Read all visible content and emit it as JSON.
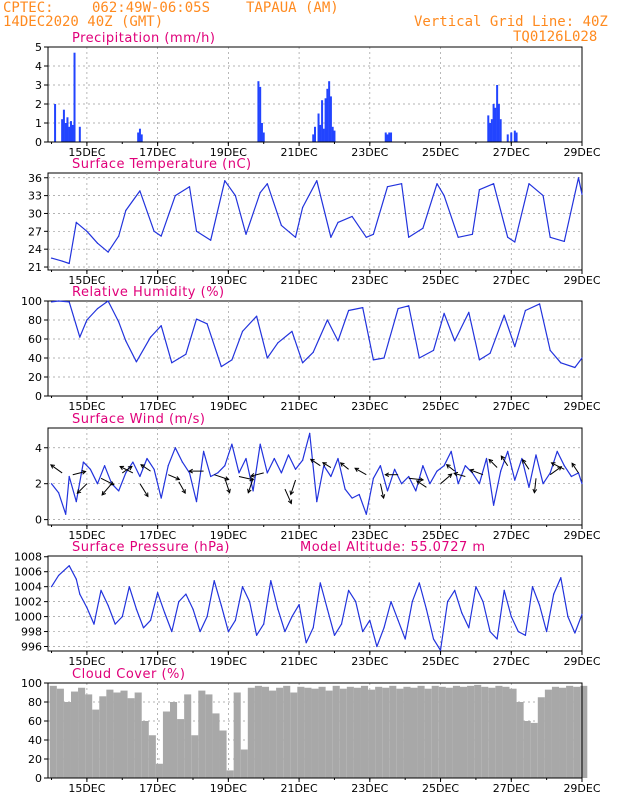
{
  "header": {
    "source": "CPTEC:",
    "coords": "062:49W-06:05S",
    "location": "TAPAUA (AM)",
    "date": "14DEC2020 40Z (GMT)",
    "grid_note": "Vertical Grid Line: 40Z",
    "model_id": "TQ0126L028"
  },
  "colors": {
    "header": "#ff8a1f",
    "title": "#e0007a",
    "line": "#2233dd",
    "bar": "#2244ff",
    "cloud": "#a8a8a8",
    "grid": "#9a9a9a"
  },
  "x_axis": {
    "day_ticks": [
      "15DEC",
      "17DEC",
      "19DEC",
      "21DEC",
      "23DEC",
      "25DEC",
      "27DEC",
      "29DEC"
    ],
    "tick_days": [
      15,
      17,
      19,
      21,
      23,
      25,
      27,
      29
    ],
    "xlim": [
      13.9,
      29.0
    ]
  },
  "chart_data": [
    {
      "id": "precip",
      "type": "bar",
      "title": "Precipitation (mm/h)",
      "ylim": [
        0,
        5
      ],
      "yticks": [
        "0",
        "1",
        "2",
        "3",
        "4",
        "5"
      ],
      "x": [
        14.1,
        14.3,
        14.35,
        14.4,
        14.45,
        14.5,
        14.55,
        14.6,
        14.65,
        14.8,
        16.45,
        16.5,
        16.55,
        19.85,
        19.9,
        19.95,
        20.0,
        21.4,
        21.45,
        21.55,
        21.6,
        21.65,
        21.7,
        21.75,
        21.8,
        21.85,
        21.9,
        21.95,
        22.0,
        23.45,
        23.5,
        23.55,
        23.6,
        26.35,
        26.4,
        26.45,
        26.5,
        26.55,
        26.6,
        26.65,
        26.7,
        26.9,
        27.0,
        27.1,
        27.15
      ],
      "values": [
        2.0,
        1.2,
        1.7,
        1.0,
        1.3,
        0.8,
        1.1,
        0.9,
        4.7,
        0.8,
        0.5,
        0.7,
        0.4,
        3.2,
        2.9,
        1.0,
        0.5,
        0.4,
        0.8,
        1.5,
        0.9,
        2.2,
        0.7,
        2.3,
        2.8,
        3.2,
        2.4,
        0.8,
        0.6,
        0.5,
        0.4,
        0.5,
        0.5,
        1.4,
        1.0,
        1.2,
        2.0,
        1.8,
        3.0,
        2.0,
        1.2,
        0.4,
        0.5,
        0.6,
        0.5
      ]
    },
    {
      "id": "temp",
      "type": "line",
      "title": "Surface Temperature (nC)",
      "ylim": [
        20.5,
        36.8
      ],
      "yticks": [
        "21",
        "24",
        "27",
        "30",
        "33",
        "36"
      ],
      "x": [
        14.0,
        14.3,
        14.5,
        14.7,
        15.0,
        15.3,
        15.6,
        15.9,
        16.1,
        16.5,
        16.9,
        17.1,
        17.5,
        17.9,
        18.1,
        18.5,
        18.9,
        19.2,
        19.5,
        19.9,
        20.1,
        20.5,
        20.9,
        21.1,
        21.5,
        21.9,
        22.1,
        22.5,
        22.9,
        23.1,
        23.5,
        23.9,
        24.1,
        24.5,
        24.9,
        25.1,
        25.5,
        25.9,
        26.1,
        26.5,
        26.9,
        27.1,
        27.5,
        27.9,
        28.1,
        28.5,
        28.9,
        29.0
      ],
      "values": [
        22.5,
        22.0,
        21.6,
        28.5,
        27.0,
        25.0,
        23.5,
        26.2,
        30.5,
        33.8,
        27.0,
        26.2,
        33.0,
        34.5,
        27.0,
        25.5,
        35.5,
        33.0,
        26.5,
        33.5,
        35.0,
        28.0,
        26.0,
        31.0,
        35.5,
        26.0,
        28.5,
        29.5,
        26.0,
        26.5,
        34.5,
        35.0,
        26.0,
        27.5,
        35.0,
        33.0,
        26.0,
        26.5,
        34.0,
        35.0,
        26.0,
        25.2,
        35.0,
        33.0,
        26.0,
        25.3,
        36.0,
        33.2
      ]
    },
    {
      "id": "rh",
      "type": "line",
      "title": "Relative Humidity (%)",
      "ylim": [
        0,
        100
      ],
      "yticks": [
        "0",
        "20",
        "40",
        "60",
        "80",
        "100"
      ],
      "x": [
        14.0,
        14.2,
        14.5,
        14.8,
        15.0,
        15.3,
        15.6,
        15.9,
        16.1,
        16.4,
        16.8,
        17.1,
        17.4,
        17.8,
        18.1,
        18.4,
        18.8,
        19.1,
        19.4,
        19.8,
        20.1,
        20.4,
        20.8,
        21.1,
        21.4,
        21.8,
        22.1,
        22.4,
        22.8,
        23.1,
        23.4,
        23.8,
        24.1,
        24.4,
        24.8,
        25.1,
        25.4,
        25.8,
        26.1,
        26.4,
        26.8,
        27.1,
        27.4,
        27.8,
        28.1,
        28.4,
        28.8,
        29.0
      ],
      "values": [
        99,
        100,
        99,
        62,
        80,
        92,
        100,
        78,
        58,
        36,
        62,
        74,
        35,
        44,
        81,
        76,
        31,
        38,
        68,
        84,
        40,
        56,
        68,
        35,
        46,
        80,
        58,
        90,
        93,
        38,
        40,
        92,
        95,
        40,
        48,
        87,
        58,
        88,
        38,
        45,
        85,
        52,
        90,
        97,
        48,
        35,
        30,
        40
      ]
    },
    {
      "id": "wind",
      "type": "line",
      "title": "Surface Wind (m/s)",
      "ylim": [
        -0.3,
        5.1
      ],
      "yticks": [
        "0",
        "2",
        "4"
      ],
      "x": [
        14.0,
        14.2,
        14.4,
        14.5,
        14.7,
        14.9,
        15.1,
        15.3,
        15.5,
        15.7,
        15.9,
        16.1,
        16.3,
        16.5,
        16.7,
        16.9,
        17.1,
        17.3,
        17.5,
        17.7,
        17.9,
        18.1,
        18.3,
        18.5,
        18.7,
        18.9,
        19.1,
        19.3,
        19.5,
        19.7,
        19.9,
        20.1,
        20.3,
        20.5,
        20.7,
        20.9,
        21.1,
        21.3,
        21.5,
        21.7,
        21.9,
        22.1,
        22.3,
        22.5,
        22.7,
        22.9,
        23.1,
        23.3,
        23.5,
        23.7,
        23.9,
        24.1,
        24.3,
        24.5,
        24.7,
        24.9,
        25.1,
        25.3,
        25.5,
        25.7,
        25.9,
        26.1,
        26.3,
        26.5,
        26.7,
        26.9,
        27.1,
        27.3,
        27.5,
        27.7,
        27.9,
        28.1,
        28.3,
        28.5,
        28.7,
        28.9,
        29.0
      ],
      "values": [
        2.0,
        1.5,
        0.3,
        2.4,
        1.0,
        3.2,
        2.8,
        2.0,
        3.0,
        2.0,
        1.6,
        2.6,
        3.2,
        2.4,
        3.4,
        2.8,
        1.2,
        3.0,
        4.0,
        3.2,
        2.6,
        1.0,
        3.8,
        2.4,
        2.6,
        3.0,
        4.2,
        2.6,
        3.4,
        1.6,
        4.2,
        2.6,
        3.4,
        2.6,
        3.6,
        2.8,
        3.3,
        4.8,
        1.0,
        3.0,
        2.4,
        3.4,
        1.7,
        1.2,
        1.4,
        0.3,
        2.3,
        3.0,
        1.6,
        2.8,
        2.0,
        2.4,
        1.6,
        3.0,
        2.0,
        2.7,
        3.0,
        3.8,
        2.0,
        3.0,
        2.6,
        2.0,
        3.4,
        0.8,
        2.7,
        3.8,
        2.2,
        3.4,
        1.8,
        3.6,
        2.0,
        2.6,
        3.8,
        3.0,
        2.4,
        2.6,
        2.0
      ]
    },
    {
      "id": "pres",
      "type": "line",
      "title": "Surface Pressure (hPa)",
      "subtitle": "Model Altitude: 55.0727 m",
      "ylim": [
        995.4,
        1008.1
      ],
      "yticks": [
        "996",
        "998",
        "1000",
        "1002",
        "1004",
        "1006",
        "1008"
      ],
      "x": [
        14.0,
        14.2,
        14.5,
        14.7,
        14.8,
        15.0,
        15.2,
        15.4,
        15.6,
        15.8,
        16.0,
        16.2,
        16.4,
        16.6,
        16.8,
        17.0,
        17.2,
        17.4,
        17.6,
        17.8,
        18.0,
        18.2,
        18.4,
        18.6,
        18.8,
        19.0,
        19.2,
        19.4,
        19.6,
        19.8,
        20.0,
        20.2,
        20.4,
        20.6,
        20.8,
        21.0,
        21.2,
        21.4,
        21.6,
        21.8,
        22.0,
        22.2,
        22.4,
        22.6,
        22.8,
        23.0,
        23.2,
        23.4,
        23.6,
        23.8,
        24.0,
        24.2,
        24.4,
        24.6,
        24.8,
        25.0,
        25.2,
        25.4,
        25.6,
        25.8,
        26.0,
        26.2,
        26.4,
        26.6,
        26.8,
        27.0,
        27.2,
        27.4,
        27.6,
        27.8,
        28.0,
        28.2,
        28.4,
        28.6,
        28.8,
        29.0
      ],
      "values": [
        1004.0,
        1005.5,
        1006.8,
        1005.0,
        1003.0,
        1001.2,
        999.0,
        1003.5,
        1001.5,
        999.0,
        1000.0,
        1004.0,
        1001.0,
        998.5,
        999.5,
        1003.2,
        1000.5,
        998.0,
        1002.0,
        1003.0,
        1001.0,
        998.0,
        1000.0,
        1004.8,
        1001.5,
        998.0,
        999.5,
        1004.0,
        1002.0,
        997.5,
        999.0,
        1004.8,
        1001.0,
        998.0,
        1000.0,
        1001.6,
        996.5,
        998.5,
        1004.5,
        1001.0,
        997.5,
        999.0,
        1003.5,
        1002.0,
        998.0,
        999.5,
        996.0,
        998.5,
        1002.0,
        999.5,
        997.0,
        1002.0,
        1004.5,
        1001.0,
        997.0,
        995.5,
        1002.0,
        1003.5,
        1000.5,
        998.5,
        1004.0,
        1002.0,
        998.0,
        997.0,
        1003.5,
        1000.0,
        998.0,
        997.5,
        1004.0,
        1001.5,
        998.0,
        1003.0,
        1005.2,
        1000.0,
        997.8,
        1000.3
      ]
    },
    {
      "id": "cloud",
      "type": "bar",
      "title": "Cloud Cover (%)",
      "ylim": [
        0,
        100
      ],
      "yticks": [
        "0",
        "20",
        "40",
        "60",
        "80",
        "100"
      ],
      "x": [
        13.95,
        14.15,
        14.35,
        14.55,
        14.75,
        14.95,
        15.15,
        15.35,
        15.55,
        15.75,
        15.95,
        16.15,
        16.35,
        16.55,
        16.75,
        16.95,
        17.15,
        17.35,
        17.55,
        17.75,
        17.95,
        18.15,
        18.35,
        18.55,
        18.75,
        18.95,
        19.15,
        19.35,
        19.55,
        19.75,
        19.95,
        20.15,
        20.35,
        20.55,
        20.75,
        20.95,
        21.15,
        21.35,
        21.55,
        21.75,
        21.95,
        22.15,
        22.35,
        22.55,
        22.75,
        22.95,
        23.15,
        23.35,
        23.55,
        23.75,
        23.95,
        24.15,
        24.35,
        24.55,
        24.75,
        24.95,
        25.15,
        25.35,
        25.55,
        25.75,
        25.95,
        26.15,
        26.35,
        26.55,
        26.75,
        26.95,
        27.15,
        27.35,
        27.55,
        27.75,
        27.95,
        28.15,
        28.35,
        28.55,
        28.75,
        28.95
      ],
      "values": [
        97,
        94,
        80,
        91,
        95,
        88,
        72,
        86,
        93,
        90,
        92,
        84,
        90,
        60,
        45,
        15,
        70,
        80,
        62,
        88,
        45,
        92,
        88,
        68,
        50,
        8,
        90,
        30,
        95,
        97,
        96,
        92,
        95,
        97,
        90,
        96,
        95,
        94,
        96,
        92,
        97,
        94,
        96,
        95,
        97,
        93,
        96,
        95,
        97,
        94,
        96,
        95,
        97,
        94,
        97,
        96,
        95,
        97,
        96,
        97,
        98,
        96,
        95,
        97,
        96,
        94,
        80,
        60,
        58,
        85,
        93,
        96,
        95,
        97,
        96,
        97
      ]
    }
  ],
  "wind_arrows": [
    {
      "x": 14.3,
      "y": 2.6,
      "dx": -7,
      "dy": -5
    },
    {
      "x": 14.6,
      "y": 2.5,
      "dx": 8,
      "dy": -2
    },
    {
      "x": 15.0,
      "y": 2.0,
      "dx": -6,
      "dy": 6
    },
    {
      "x": 15.4,
      "y": 2.3,
      "dx": 8,
      "dy": 4
    },
    {
      "x": 15.7,
      "y": 2.0,
      "dx": -6,
      "dy": 7
    },
    {
      "x": 16.0,
      "y": 2.6,
      "dx": 6,
      "dy": -4
    },
    {
      "x": 16.3,
      "y": 2.6,
      "dx": -8,
      "dy": -4
    },
    {
      "x": 16.5,
      "y": 2.0,
      "dx": 5,
      "dy": 8
    },
    {
      "x": 16.8,
      "y": 2.7,
      "dx": -6,
      "dy": -4
    },
    {
      "x": 17.3,
      "y": 2.5,
      "dx": 7,
      "dy": 3
    },
    {
      "x": 17.6,
      "y": 2.1,
      "dx": 4,
      "dy": 7
    },
    {
      "x": 18.3,
      "y": 2.7,
      "dx": -9,
      "dy": 0
    },
    {
      "x": 18.6,
      "y": 2.5,
      "dx": 9,
      "dy": 3
    },
    {
      "x": 18.9,
      "y": 2.3,
      "dx": 3,
      "dy": 9
    },
    {
      "x": 19.3,
      "y": 2.4,
      "dx": 9,
      "dy": 2
    },
    {
      "x": 19.7,
      "y": 2.3,
      "dx": -3,
      "dy": 9
    },
    {
      "x": 20.0,
      "y": 2.6,
      "dx": -8,
      "dy": 2
    },
    {
      "x": 20.6,
      "y": 1.7,
      "dx": 4,
      "dy": 9
    },
    {
      "x": 20.9,
      "y": 2.2,
      "dx": -3,
      "dy": 9
    },
    {
      "x": 21.6,
      "y": 3.0,
      "dx": -6,
      "dy": -4
    },
    {
      "x": 21.9,
      "y": 2.9,
      "dx": -5,
      "dy": -3
    },
    {
      "x": 22.4,
      "y": 2.8,
      "dx": -5,
      "dy": -4
    },
    {
      "x": 22.9,
      "y": 2.5,
      "dx": -7,
      "dy": -4
    },
    {
      "x": 23.3,
      "y": 2.0,
      "dx": 2,
      "dy": 9
    },
    {
      "x": 23.8,
      "y": 2.5,
      "dx": -8,
      "dy": 0
    },
    {
      "x": 24.1,
      "y": 2.3,
      "dx": 9,
      "dy": 1
    },
    {
      "x": 24.6,
      "y": 1.8,
      "dx": -6,
      "dy": -4
    },
    {
      "x": 25.0,
      "y": 2.0,
      "dx": 7,
      "dy": -6
    },
    {
      "x": 25.4,
      "y": 2.7,
      "dx": -5,
      "dy": -4
    },
    {
      "x": 25.7,
      "y": 2.4,
      "dx": -7,
      "dy": -2
    },
    {
      "x": 26.2,
      "y": 2.5,
      "dx": -8,
      "dy": -3
    },
    {
      "x": 26.6,
      "y": 2.9,
      "dx": -5,
      "dy": -5
    },
    {
      "x": 26.9,
      "y": 3.0,
      "dx": -4,
      "dy": -6
    },
    {
      "x": 27.5,
      "y": 2.8,
      "dx": -4,
      "dy": -6
    },
    {
      "x": 27.7,
      "y": 2.3,
      "dx": -1,
      "dy": 9
    },
    {
      "x": 28.1,
      "y": 2.5,
      "dx": 7,
      "dy": -5
    },
    {
      "x": 28.5,
      "y": 2.8,
      "dx": -8,
      "dy": -4
    },
    {
      "x": 28.9,
      "y": 2.6,
      "dx": -4,
      "dy": -6
    }
  ]
}
